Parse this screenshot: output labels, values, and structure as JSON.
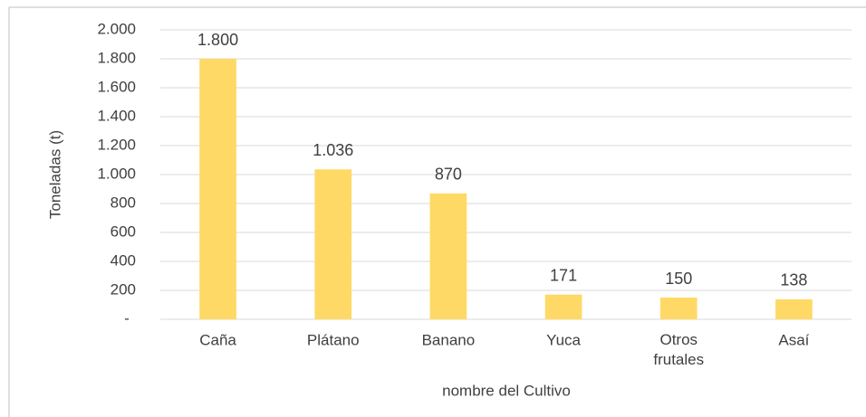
{
  "chart_data": {
    "type": "bar",
    "categories": [
      "Caña",
      "Plátano",
      "Banano",
      "Yuca",
      "Otros frutales",
      "Asaí"
    ],
    "values": [
      1800,
      1036,
      870,
      171,
      150,
      138
    ],
    "value_labels": [
      "1.800",
      "1.036",
      "870",
      "171",
      "150",
      "138"
    ],
    "color": "#ffd966",
    "ylim": [
      0,
      2000
    ],
    "yticks": [
      {
        "value": 0,
        "label": "-"
      },
      200,
      400,
      600,
      800,
      {
        "value": 1000,
        "label": "1.000"
      },
      {
        "value": 1200,
        "label": "1.200"
      },
      {
        "value": 1400,
        "label": "1.400"
      },
      {
        "value": 1600,
        "label": "1.600"
      },
      {
        "value": 1800,
        "label": "1.800"
      },
      {
        "value": 2000,
        "label": "2.000"
      }
    ],
    "ylabel": "Toneladas (t)",
    "xlabel": "nombre del Cultivo",
    "grid": true
  }
}
